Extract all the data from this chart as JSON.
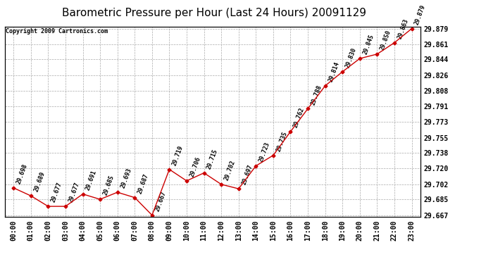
{
  "title": "Barometric Pressure per Hour (Last 24 Hours) 20091129",
  "copyright": "Copyright 2009 Cartronics.com",
  "hours": [
    "00:00",
    "01:00",
    "02:00",
    "03:00",
    "04:00",
    "05:00",
    "06:00",
    "07:00",
    "08:00",
    "09:00",
    "10:00",
    "11:00",
    "12:00",
    "13:00",
    "14:00",
    "15:00",
    "16:00",
    "17:00",
    "18:00",
    "19:00",
    "20:00",
    "21:00",
    "22:00",
    "23:00"
  ],
  "values": [
    29.698,
    29.689,
    29.677,
    29.677,
    29.691,
    29.685,
    29.693,
    29.687,
    29.667,
    29.719,
    29.706,
    29.715,
    29.702,
    29.697,
    29.723,
    29.735,
    29.762,
    29.788,
    29.814,
    29.83,
    29.845,
    29.85,
    29.863,
    29.879
  ],
  "ylim_min": 29.6655,
  "ylim_max": 29.8815,
  "yticks": [
    29.667,
    29.685,
    29.702,
    29.72,
    29.738,
    29.755,
    29.773,
    29.791,
    29.808,
    29.826,
    29.844,
    29.861,
    29.879
  ],
  "line_color": "#cc0000",
  "marker_color": "#cc0000",
  "bg_color": "#ffffff",
  "plot_bg_color": "#ffffff",
  "grid_color": "#aaaaaa",
  "title_fontsize": 11,
  "tick_fontsize": 7,
  "annotation_fontsize": 6,
  "copyright_fontsize": 6
}
